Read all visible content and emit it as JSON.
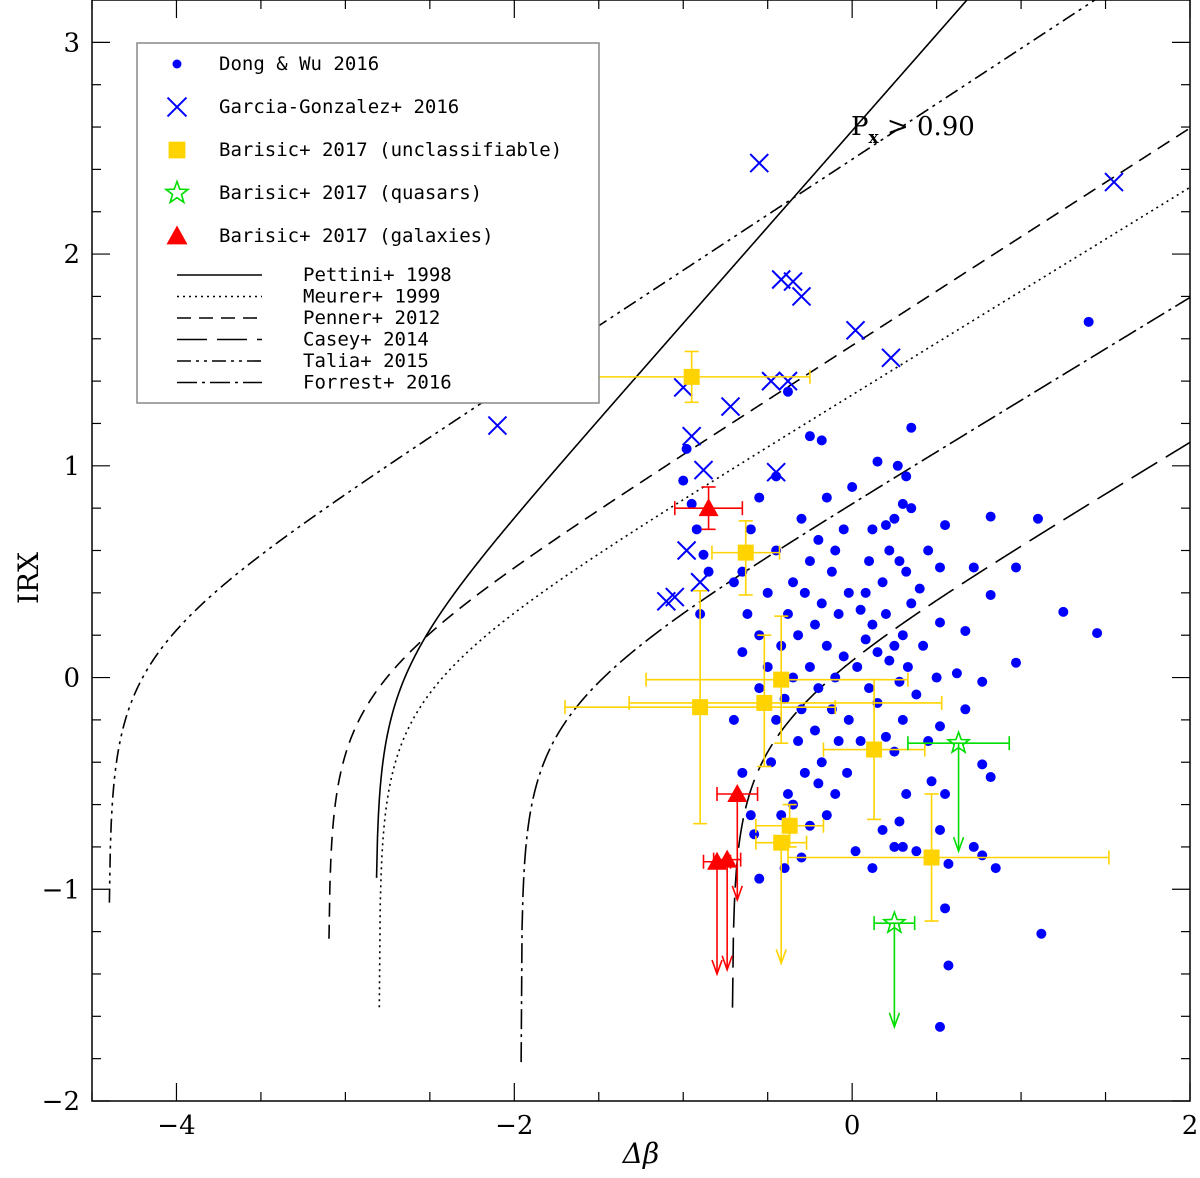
{
  "chart_data": {
    "type": "scatter",
    "xlabel": "Δβ",
    "ylabel": "IRX",
    "xlim": [
      -4.5,
      2.0
    ],
    "ylim": [
      -2.0,
      3.2
    ],
    "xticks": [
      -4,
      -2,
      0,
      2
    ],
    "yticks": [
      -2,
      -1,
      0,
      1,
      2,
      3
    ],
    "annotation": {
      "text": "P",
      "sub": "x",
      "rest": " > 0.90"
    },
    "legend_position": "top-left",
    "colors": {
      "dong": "#0000ff",
      "garcia": "#0000ff",
      "unclass": "#ffd300",
      "quasar": "#00dd00",
      "galaxy": "#ff0000"
    },
    "legend": [
      "Dong & Wu 2016",
      "Garcia-Gonzalez+ 2016",
      "Barisic+ 2017 (unclassifiable)",
      "Barisic+ 2017 (quasars)",
      "Barisic+ 2017 (galaxies)",
      "Pettini+ 1998",
      "Meurer+ 1999",
      "Penner+ 2012",
      "Casey+ 2014",
      "Talia+ 2015",
      "Forrest+ 2016"
    ],
    "series": [
      {
        "name": "Dong & Wu 2016",
        "marker": "dot",
        "points": [
          [
            1.4,
            1.68
          ],
          [
            1.45,
            0.21
          ],
          [
            1.25,
            0.31
          ],
          [
            1.1,
            0.75
          ],
          [
            0.97,
            0.52
          ],
          [
            0.97,
            0.07
          ],
          [
            1.12,
            -1.21
          ],
          [
            0.82,
            0.76
          ],
          [
            0.82,
            0.39
          ],
          [
            0.77,
            -0.02
          ],
          [
            0.77,
            -0.41
          ],
          [
            0.72,
            -0.8
          ],
          [
            0.77,
            -0.84
          ],
          [
            0.85,
            -0.9
          ],
          [
            0.82,
            -0.47
          ],
          [
            0.67,
            -0.15
          ],
          [
            0.62,
            0.02
          ],
          [
            0.67,
            0.22
          ],
          [
            0.72,
            0.52
          ],
          [
            0.55,
            0.72
          ],
          [
            0.52,
            0.52
          ],
          [
            0.52,
            0.26
          ],
          [
            0.5,
            0.0
          ],
          [
            0.52,
            -0.23
          ],
          [
            0.55,
            -0.55
          ],
          [
            0.52,
            -0.72
          ],
          [
            0.57,
            -0.88
          ],
          [
            0.55,
            -1.09
          ],
          [
            0.57,
            -1.36
          ],
          [
            0.52,
            -1.65
          ],
          [
            0.47,
            -0.49
          ],
          [
            0.35,
            1.18
          ],
          [
            0.32,
            0.95
          ],
          [
            0.3,
            0.82
          ],
          [
            0.27,
            1.0
          ],
          [
            0.25,
            0.75
          ],
          [
            0.2,
            0.72
          ],
          [
            0.15,
            1.02
          ],
          [
            0.12,
            0.7
          ],
          [
            0.22,
            0.6
          ],
          [
            0.28,
            0.55
          ],
          [
            0.32,
            0.5
          ],
          [
            0.18,
            0.45
          ],
          [
            0.1,
            0.55
          ],
          [
            0.08,
            0.4
          ],
          [
            0.35,
            0.35
          ],
          [
            0.3,
            0.2
          ],
          [
            0.25,
            0.15
          ],
          [
            0.2,
            0.3
          ],
          [
            0.12,
            0.25
          ],
          [
            0.05,
            0.32
          ],
          [
            0.33,
            0.05
          ],
          [
            0.28,
            -0.02
          ],
          [
            0.22,
            0.08
          ],
          [
            0.15,
            0.12
          ],
          [
            0.08,
            0.18
          ],
          [
            0.03,
            0.05
          ],
          [
            0.3,
            -0.2
          ],
          [
            0.25,
            -0.35
          ],
          [
            0.2,
            -0.28
          ],
          [
            0.15,
            -0.12
          ],
          [
            0.1,
            -0.05
          ],
          [
            0.05,
            -0.3
          ],
          [
            0.32,
            -0.55
          ],
          [
            0.28,
            -0.68
          ],
          [
            0.25,
            -0.8
          ],
          [
            0.3,
            -0.8
          ],
          [
            0.35,
            0.8
          ],
          [
            0.4,
            0.42
          ],
          [
            0.42,
            0.15
          ],
          [
            0.38,
            -0.08
          ],
          [
            0.45,
            -0.3
          ],
          [
            0.0,
            0.9
          ],
          [
            -0.05,
            0.7
          ],
          [
            -0.1,
            0.6
          ],
          [
            -0.15,
            0.85
          ],
          [
            -0.2,
            0.65
          ],
          [
            -0.25,
            0.55
          ],
          [
            -0.3,
            0.75
          ],
          [
            -0.35,
            0.45
          ],
          [
            -0.02,
            0.4
          ],
          [
            -0.08,
            0.3
          ],
          [
            -0.12,
            0.5
          ],
          [
            -0.18,
            0.35
          ],
          [
            -0.22,
            0.25
          ],
          [
            -0.28,
            0.4
          ],
          [
            -0.32,
            0.2
          ],
          [
            -0.38,
            0.3
          ],
          [
            -0.42,
            0.15
          ],
          [
            -0.45,
            0.6
          ],
          [
            -0.5,
            0.4
          ],
          [
            -0.55,
            0.2
          ],
          [
            -0.05,
            0.1
          ],
          [
            -0.1,
            0.0
          ],
          [
            -0.15,
            0.15
          ],
          [
            -0.2,
            -0.05
          ],
          [
            -0.25,
            0.05
          ],
          [
            -0.3,
            -0.15
          ],
          [
            -0.35,
            0.0
          ],
          [
            -0.4,
            -0.1
          ],
          [
            -0.45,
            -0.2
          ],
          [
            -0.5,
            0.05
          ],
          [
            -0.55,
            -0.05
          ],
          [
            -0.02,
            -0.2
          ],
          [
            -0.08,
            -0.3
          ],
          [
            -0.12,
            -0.15
          ],
          [
            -0.18,
            -0.4
          ],
          [
            -0.22,
            -0.25
          ],
          [
            -0.28,
            -0.45
          ],
          [
            -0.32,
            -0.3
          ],
          [
            -0.38,
            -0.55
          ],
          [
            -0.42,
            -0.65
          ],
          [
            -0.48,
            -0.4
          ],
          [
            -0.03,
            -0.45
          ],
          [
            -0.1,
            -0.55
          ],
          [
            -0.15,
            -0.65
          ],
          [
            -0.2,
            -0.5
          ],
          [
            -0.25,
            -0.7
          ],
          [
            -0.3,
            -0.85
          ],
          [
            -0.35,
            -0.6
          ],
          [
            -0.4,
            -0.9
          ],
          [
            -0.25,
            1.14
          ],
          [
            -0.18,
            1.12
          ],
          [
            -0.38,
            1.35
          ],
          [
            -0.45,
            0.95
          ],
          [
            -0.55,
            0.85
          ],
          [
            -0.6,
            0.7
          ],
          [
            -0.65,
            0.5
          ],
          [
            -0.62,
            0.3
          ],
          [
            -0.7,
            0.45
          ],
          [
            -0.65,
            0.12
          ],
          [
            -0.7,
            -0.2
          ],
          [
            -0.65,
            -0.45
          ],
          [
            -0.6,
            -0.65
          ],
          [
            -0.55,
            -0.95
          ],
          [
            -0.58,
            -0.74
          ],
          [
            -0.98,
            1.08
          ],
          [
            -1.0,
            0.93
          ],
          [
            -0.95,
            0.82
          ],
          [
            -0.92,
            0.7
          ],
          [
            -0.88,
            0.58
          ],
          [
            -0.85,
            0.5
          ],
          [
            -0.9,
            0.3
          ],
          [
            0.02,
            -0.82
          ],
          [
            0.18,
            -0.72
          ],
          [
            0.38,
            -0.82
          ],
          [
            0.45,
            0.6
          ],
          [
            0.12,
            -0.9
          ]
        ]
      },
      {
        "name": "Garcia-Gonzalez+ 2016",
        "marker": "cross",
        "points": [
          [
            -2.1,
            1.19
          ],
          [
            -0.55,
            2.43
          ],
          [
            1.55,
            2.34
          ],
          [
            -0.42,
            1.88
          ],
          [
            -0.35,
            1.87
          ],
          [
            -0.3,
            1.8
          ],
          [
            0.02,
            1.64
          ],
          [
            0.23,
            1.51
          ],
          [
            -1.0,
            1.37
          ],
          [
            -0.72,
            1.28
          ],
          [
            -0.48,
            1.4
          ],
          [
            -0.38,
            1.4
          ],
          [
            -0.95,
            1.14
          ],
          [
            -0.88,
            0.98
          ],
          [
            -0.45,
            0.97
          ],
          [
            -0.98,
            0.6
          ],
          [
            -1.05,
            0.38
          ],
          [
            -1.1,
            0.36
          ],
          [
            -0.9,
            0.45
          ]
        ]
      },
      {
        "name": "Barisic+ 2017 (unclassifiable)",
        "marker": "square",
        "points": [
          {
            "x": -0.95,
            "y": 1.42,
            "xerr": [
              0.6,
              0.7
            ],
            "yerr": [
              0.12,
              0.12
            ]
          },
          {
            "x": -0.63,
            "y": 0.59,
            "xerr": [
              0.2,
              0.2
            ],
            "yerr": [
              0.2,
              0.15
            ]
          },
          {
            "x": -0.9,
            "y": -0.14,
            "xerr": [
              0.8,
              0.8
            ],
            "yerr": [
              0.55,
              0.55
            ]
          },
          {
            "x": -0.52,
            "y": -0.12,
            "xerr": [
              0.8,
              1.05
            ],
            "yerr": [
              0.3,
              0.32
            ]
          },
          {
            "x": -0.42,
            "y": -0.01,
            "xerr": [
              0.8,
              0.75
            ],
            "yerr": [
              0.3,
              0.3
            ]
          },
          {
            "x": 0.13,
            "y": -0.34,
            "xerr": [
              0.3,
              0.3
            ],
            "yerr": [
              0.33,
              0.33
            ]
          },
          {
            "x": -0.37,
            "y": -0.7,
            "xerr": [
              0.2,
              0.2
            ],
            "yerr": [
              0.1,
              0.1
            ]
          },
          {
            "x": -0.42,
            "y": -0.78,
            "xerr": [
              0.15,
              0.15
            ],
            "upper": true,
            "arrow_to": -1.35
          },
          {
            "x": 0.47,
            "y": -0.85,
            "xerr": [
              0.85,
              1.05
            ],
            "yerr": [
              0.3,
              0.3
            ]
          }
        ]
      },
      {
        "name": "Barisic+ 2017 (quasars)",
        "marker": "star",
        "points": [
          {
            "x": 0.63,
            "y": -0.31,
            "xerr": [
              0.3,
              0.3
            ],
            "upper": true,
            "arrow_to": -0.82
          },
          {
            "x": 0.25,
            "y": -1.16,
            "xerr": [
              0.12,
              0.12
            ],
            "upper": true,
            "arrow_to": -1.65
          }
        ]
      },
      {
        "name": "Barisic+ 2017 (galaxies)",
        "marker": "triangle",
        "points": [
          {
            "x": -0.85,
            "y": 0.8,
            "xerr": [
              0.2,
              0.2
            ],
            "yerr": [
              0.1,
              0.1
            ]
          },
          {
            "x": -0.68,
            "y": -0.55,
            "xerr": [
              0.12,
              0.12
            ],
            "upper": true,
            "arrow_to": -1.05
          },
          {
            "x": -0.8,
            "y": -0.87,
            "xerr": [
              0.08,
              0.08
            ],
            "upper": true,
            "arrow_to": -1.4
          },
          {
            "x": -0.74,
            "y": -0.86,
            "xerr": [
              0.08,
              0.08
            ],
            "upper": true,
            "arrow_to": -1.38
          }
        ]
      }
    ],
    "curves": [
      {
        "name": "Pettini+ 1998",
        "a": 10.33,
        "b": 2.5,
        "x0": -2.82
      },
      {
        "name": "Meurer+ 1999",
        "a": 4.43,
        "b": 1.99,
        "x0": -2.8
      },
      {
        "name": "Penner+ 2012",
        "a": 4.9,
        "b": 2.1,
        "x0": -3.1
      },
      {
        "name": "Casey+ 2014",
        "a": 2.2,
        "b": 1.0,
        "x0": -0.71
      },
      {
        "name": "Talia+ 2015",
        "a": 10.0,
        "b": 4.2,
        "x0": -4.4
      },
      {
        "name": "Forrest+ 2016",
        "a": 3.0,
        "b": 1.36,
        "x0": -1.96
      }
    ]
  }
}
